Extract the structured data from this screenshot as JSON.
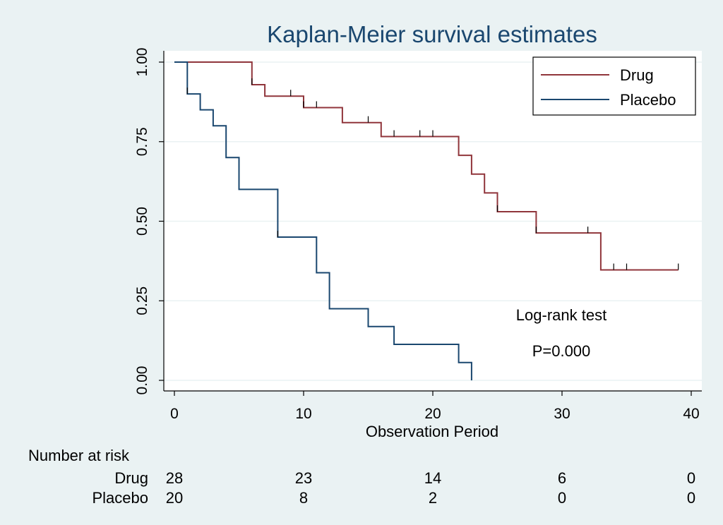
{
  "chart_data": {
    "type": "line",
    "title": "Kaplan-Meier survival estimates",
    "xlabel": "Observation Period",
    "ylabel": "",
    "xlim": [
      0,
      40
    ],
    "ylim": [
      0,
      1
    ],
    "x_ticks": [
      0,
      10,
      20,
      30,
      40
    ],
    "x_tick_labels": [
      "0",
      "10",
      "20",
      "30",
      "40"
    ],
    "y_ticks": [
      0,
      0.25,
      0.5,
      0.75,
      1
    ],
    "y_tick_labels": [
      "0.00",
      "0.25",
      "0.50",
      "0.75",
      "1.00"
    ],
    "grid": true,
    "legend_position": "top-right",
    "series": [
      {
        "name": "Drug",
        "color": "#90353b",
        "step_times": [
          0,
          6,
          7,
          10,
          13,
          16,
          22,
          23,
          24,
          25,
          28,
          33,
          39
        ],
        "survival": [
          1.0,
          0.929,
          0.893,
          0.857,
          0.81,
          0.766,
          0.707,
          0.648,
          0.589,
          0.53,
          0.463,
          0.347,
          0.347
        ],
        "censored_times": [
          6,
          9,
          10,
          11,
          15,
          17,
          19,
          20,
          25,
          28,
          32,
          34,
          35,
          39
        ]
      },
      {
        "name": "Placebo",
        "color": "#1a476f",
        "step_times": [
          0,
          1,
          2,
          3,
          4,
          5,
          8,
          11,
          12,
          15,
          17,
          22,
          23
        ],
        "survival": [
          1.0,
          0.9,
          0.85,
          0.8,
          0.7,
          0.6,
          0.45,
          0.338,
          0.225,
          0.169,
          0.113,
          0.056,
          0.0
        ],
        "censored_times": [
          1,
          8
        ]
      }
    ],
    "annotations": [
      "Log-rank test",
      "P=0.000"
    ],
    "risk_table": {
      "header": "Number at risk",
      "times": [
        0,
        10,
        20,
        30,
        40
      ],
      "rows": [
        {
          "label": "Drug",
          "values": [
            "28",
            "23",
            "14",
            "6",
            "0"
          ]
        },
        {
          "label": "Placebo",
          "values": [
            "20",
            "8",
            "2",
            "0",
            "0"
          ]
        }
      ]
    }
  },
  "colors": {
    "background": "#eaf2f3",
    "plot_background": "#ffffff",
    "grid": "#eaf2f3",
    "drug": "#90353b",
    "placebo": "#1a476f",
    "title": "#1a476f"
  }
}
